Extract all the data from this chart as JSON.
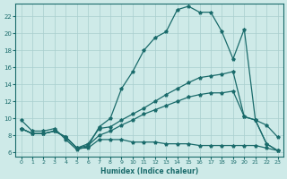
{
  "xlabel": "Humidex (Indice chaleur)",
  "bg_color": "#ceeae8",
  "grid_color": "#a8cece",
  "line_color": "#1a6b6b",
  "x_ticks": [
    0,
    1,
    2,
    3,
    4,
    5,
    6,
    7,
    8,
    9,
    10,
    11,
    12,
    13,
    14,
    15,
    16,
    17,
    18,
    19,
    20,
    21,
    22,
    23
  ],
  "y_ticks": [
    6,
    8,
    10,
    12,
    14,
    16,
    18,
    20,
    22
  ],
  "xlim": [
    -0.5,
    23.5
  ],
  "ylim": [
    5.5,
    23.5
  ],
  "line1_x": [
    0,
    1,
    2,
    3,
    4,
    5,
    6,
    7,
    8,
    9,
    10,
    11,
    12,
    13,
    14,
    15,
    16,
    17,
    18,
    19,
    20,
    21,
    22,
    23
  ],
  "line1_y": [
    9.8,
    8.5,
    8.5,
    8.8,
    7.5,
    6.3,
    6.7,
    9.0,
    10.0,
    13.5,
    15.5,
    18.0,
    19.5,
    20.2,
    22.8,
    23.2,
    22.5,
    22.5,
    20.2,
    17.0,
    20.5,
    9.8,
    9.2,
    7.8
  ],
  "line2_x": [
    0,
    1,
    2,
    3,
    4,
    5,
    6,
    7,
    8,
    9,
    10,
    11,
    12,
    13,
    14,
    15,
    16,
    17,
    18,
    19,
    20,
    21,
    22,
    23
  ],
  "line2_y": [
    8.8,
    8.2,
    8.2,
    8.5,
    7.8,
    6.5,
    7.0,
    8.8,
    9.0,
    9.8,
    10.5,
    11.2,
    12.0,
    12.8,
    13.5,
    14.2,
    14.8,
    15.0,
    15.2,
    15.5,
    10.2,
    9.8,
    7.0,
    6.2
  ],
  "line3_x": [
    0,
    1,
    2,
    3,
    4,
    5,
    6,
    7,
    8,
    9,
    10,
    11,
    12,
    13,
    14,
    15,
    16,
    17,
    18,
    19,
    20,
    21,
    22,
    23
  ],
  "line3_y": [
    8.8,
    8.2,
    8.2,
    8.5,
    7.8,
    6.5,
    6.8,
    8.0,
    8.5,
    9.2,
    9.8,
    10.5,
    11.0,
    11.5,
    12.0,
    12.5,
    12.8,
    13.0,
    13.0,
    13.2,
    10.2,
    9.8,
    7.0,
    6.2
  ],
  "line4_x": [
    0,
    1,
    2,
    3,
    4,
    5,
    6,
    7,
    8,
    9,
    10,
    11,
    12,
    13,
    14,
    15,
    16,
    17,
    18,
    19,
    20,
    21,
    22,
    23
  ],
  "line4_y": [
    8.8,
    8.2,
    8.2,
    8.5,
    7.8,
    6.5,
    6.5,
    7.5,
    7.5,
    7.5,
    7.2,
    7.2,
    7.2,
    7.0,
    7.0,
    7.0,
    6.8,
    6.8,
    6.8,
    6.8,
    6.8,
    6.8,
    6.5,
    6.2
  ]
}
